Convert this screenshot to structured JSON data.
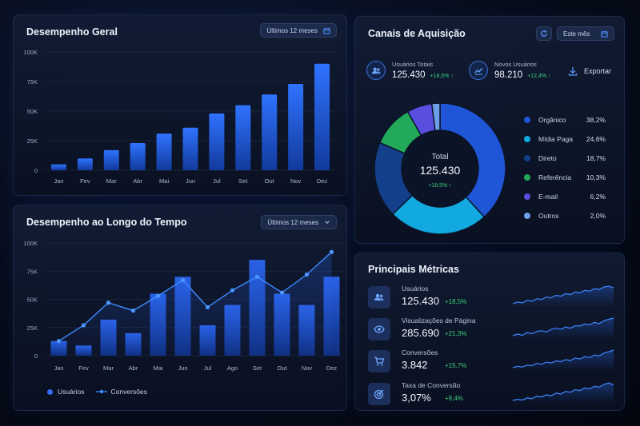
{
  "performance_general": {
    "title": "Desempenho Geral",
    "period": "Últimos 12 meses",
    "calendar_icon": "calendar-icon"
  },
  "performance_time": {
    "title": "Desempenho ao Longo do Tempo",
    "period": "Últimos 12 meses",
    "dropdown_icon": "chevron-down-icon",
    "legend_users": "Usuários",
    "legend_conversions": "Conversões"
  },
  "acquisition": {
    "title": "Canais de Aquisição",
    "period": "Este mês",
    "export_label": "Exportar",
    "total_label": "Total",
    "total_value": "125.430",
    "total_delta": "+18,5%",
    "stats": [
      {
        "label": "Usuários Totais",
        "value": "125.430",
        "delta": "+18,5%",
        "icon": "users-icon"
      },
      {
        "label": "Novos Usuários",
        "value": "98.210",
        "delta": "+12,4%",
        "icon": "trend-chart-icon"
      }
    ],
    "channels": [
      {
        "name": "Orgânico",
        "pct": "38,2%",
        "value": 38.2,
        "color": "#1f56d8"
      },
      {
        "name": "Mídia Paga",
        "pct": "24,6%",
        "value": 24.6,
        "color": "#12a9e0"
      },
      {
        "name": "Direto",
        "pct": "18,7%",
        "value": 18.7,
        "color": "#143f8a"
      },
      {
        "name": "Referência",
        "pct": "10,3%",
        "value": 10.3,
        "color": "#22a95a"
      },
      {
        "name": "E-mail",
        "pct": "6,2%",
        "value": 6.2,
        "color": "#5a4ee0"
      },
      {
        "name": "Outros",
        "pct": "2,0%",
        "value": 2.0,
        "color": "#6ea0ea"
      }
    ]
  },
  "metrics": {
    "title": "Principais Métricas",
    "rows": [
      {
        "label": "Usuários",
        "value": "125.430",
        "delta": "+18,5%",
        "icon": "users-icon"
      },
      {
        "label": "Visualizações de Página",
        "value": "285.690",
        "delta": "+21,3%",
        "icon": "eye-icon"
      },
      {
        "label": "Conversões",
        "value": "3.842",
        "delta": "+15,7%",
        "icon": "cart-icon"
      },
      {
        "label": "Taxa de Conversão",
        "value": "3,07%",
        "delta": "+9,4%",
        "icon": "target-icon"
      }
    ],
    "sparklines": [
      [
        3,
        4,
        3.5,
        5,
        4.5,
        6,
        5.5,
        7,
        6.5,
        8,
        7.5,
        9,
        8.5,
        10,
        9.5,
        11,
        10.5,
        12,
        11.5,
        13,
        13.5,
        12.5
      ],
      [
        3,
        4,
        3.2,
        5,
        4.2,
        5.5,
        6,
        5.2,
        6.8,
        7.5,
        6.8,
        8.2,
        7.5,
        9,
        8.8,
        10,
        9.5,
        11,
        10.2,
        12,
        12.8,
        13.5
      ],
      [
        3,
        3.8,
        3.4,
        4.5,
        4.2,
        5.6,
        5,
        6.3,
        5.8,
        7,
        6.6,
        7.8,
        7.2,
        8.8,
        8.2,
        9.6,
        9,
        10.6,
        10,
        11.8,
        12.5,
        13.5
      ],
      [
        3,
        3.5,
        3.2,
        4.2,
        3.8,
        5,
        4.6,
        5.6,
        5.2,
        6.4,
        6,
        7.2,
        6.8,
        8,
        7.6,
        8.8,
        8.4,
        9.6,
        9.2,
        10.5,
        11.2,
        10.2
      ]
    ]
  },
  "chart_data": [
    {
      "type": "bar",
      "title": "Desempenho Geral",
      "categories": [
        "Jan",
        "Fev",
        "Mar",
        "Abr",
        "Mai",
        "Jun",
        "Jul",
        "Set",
        "Out",
        "Nov",
        "Dez"
      ],
      "values": [
        5000,
        10000,
        17000,
        23000,
        31000,
        36000,
        48000,
        55000,
        64000,
        73000,
        90000
      ],
      "ylim": [
        0,
        100000
      ],
      "yticks": [
        "0",
        "25K",
        "50K",
        "75K",
        "100K"
      ],
      "grid": true
    },
    {
      "type": "bar+line",
      "title": "Desempenho ao Longo do Tempo",
      "categories": [
        "Jan",
        "Fev",
        "Mar",
        "Abr",
        "Mai",
        "Jun",
        "Jul",
        "Ago",
        "Set",
        "Out",
        "Nov",
        "Dez"
      ],
      "series": [
        {
          "name": "Usuários",
          "type": "bar",
          "values": [
            13000,
            9000,
            32000,
            20000,
            55000,
            70000,
            27000,
            45000,
            85000,
            55000,
            45000,
            70000
          ]
        },
        {
          "name": "Conversões",
          "type": "line",
          "values": [
            13000,
            27000,
            47000,
            40000,
            53000,
            67000,
            43000,
            58000,
            70000,
            56000,
            72000,
            92000
          ]
        }
      ],
      "ylim": [
        0,
        100000
      ],
      "yticks": [
        "0",
        "25K",
        "50K",
        "75K",
        "100K"
      ],
      "grid": true,
      "legend": "bottom-left"
    },
    {
      "type": "pie",
      "title": "Canais de Aquisição",
      "categories": [
        "Orgânico",
        "Mídia Paga",
        "Direto",
        "Referência",
        "E-mail",
        "Outros"
      ],
      "values": [
        38.2,
        24.6,
        18.7,
        10.3,
        6.2,
        2.0
      ],
      "legend": "right"
    }
  ]
}
